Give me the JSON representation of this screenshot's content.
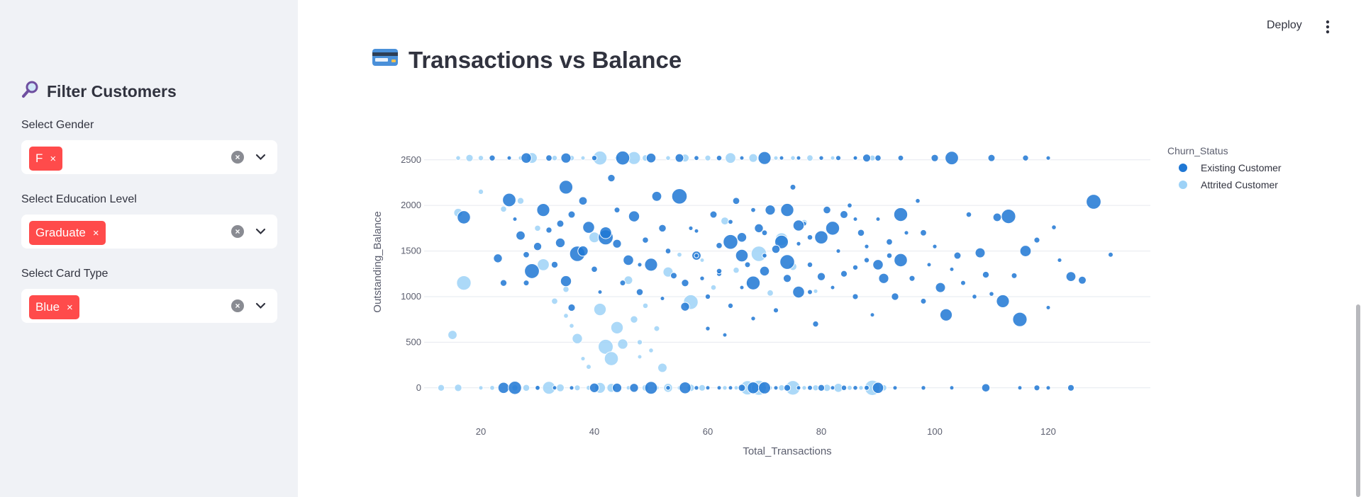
{
  "header": {
    "deploy_label": "Deploy"
  },
  "sidebar": {
    "title": "Filter Customers",
    "title_icon": "magnifier-icon",
    "filters": [
      {
        "label": "Select Gender",
        "selected": "F"
      },
      {
        "label": "Select Education Level",
        "selected": "Graduate"
      },
      {
        "label": "Select Card Type",
        "selected": "Blue"
      }
    ],
    "tag_remove": "×"
  },
  "page": {
    "title": "Transactions vs Balance",
    "title_icon": "credit-card-icon"
  },
  "colors": {
    "accent": "#ff4b4b",
    "existing": "#1f77d4",
    "attrited": "#9dd2f7",
    "sidebar_bg": "#f0f2f6"
  },
  "chart_data": {
    "type": "scatter",
    "xlabel": "Total_Transactions",
    "ylabel": "Outstanding_Balance",
    "xlim": [
      10,
      138
    ],
    "ylim": [
      -250,
      2700
    ],
    "xticks": [
      20,
      40,
      60,
      80,
      100,
      120
    ],
    "yticks": [
      0,
      500,
      1000,
      1500,
      2000,
      2500
    ],
    "grid": true,
    "legend": {
      "title": "Churn_Status",
      "placement": "top-right"
    },
    "series": [
      {
        "name": "Existing Customer",
        "color": "#1f77d4",
        "points": [
          [
            24,
            0
          ],
          [
            26,
            0
          ],
          [
            30,
            0
          ],
          [
            33,
            0
          ],
          [
            36,
            0
          ],
          [
            40,
            0
          ],
          [
            44,
            0
          ],
          [
            47,
            0
          ],
          [
            50,
            0
          ],
          [
            53,
            0
          ],
          [
            56,
            0
          ],
          [
            58,
            0
          ],
          [
            60,
            0
          ],
          [
            62,
            0
          ],
          [
            64,
            0
          ],
          [
            66,
            0
          ],
          [
            68,
            0
          ],
          [
            70,
            0
          ],
          [
            72,
            0
          ],
          [
            74,
            0
          ],
          [
            76,
            0
          ],
          [
            78,
            0
          ],
          [
            80,
            0
          ],
          [
            82,
            0
          ],
          [
            84,
            0
          ],
          [
            86,
            0
          ],
          [
            88,
            0
          ],
          [
            90,
            0
          ],
          [
            93,
            0
          ],
          [
            98,
            0
          ],
          [
            103,
            0
          ],
          [
            109,
            0
          ],
          [
            115,
            0
          ],
          [
            118,
            0
          ],
          [
            120,
            0
          ],
          [
            124,
            0
          ],
          [
            22,
            2520
          ],
          [
            25,
            2520
          ],
          [
            28,
            2520
          ],
          [
            32,
            2520
          ],
          [
            35,
            2520
          ],
          [
            40,
            2520
          ],
          [
            45,
            2520
          ],
          [
            50,
            2520
          ],
          [
            55,
            2520
          ],
          [
            58,
            2520
          ],
          [
            62,
            2520
          ],
          [
            66,
            2520
          ],
          [
            70,
            2520
          ],
          [
            73,
            2520
          ],
          [
            76,
            2520
          ],
          [
            80,
            2520
          ],
          [
            83,
            2520
          ],
          [
            86,
            2520
          ],
          [
            88,
            2520
          ],
          [
            90,
            2520
          ],
          [
            94,
            2520
          ],
          [
            100,
            2520
          ],
          [
            103,
            2520
          ],
          [
            110,
            2520
          ],
          [
            116,
            2520
          ],
          [
            120,
            2520
          ],
          [
            17,
            1870
          ],
          [
            23,
            1420
          ],
          [
            24,
            1150
          ],
          [
            25,
            2060
          ],
          [
            27,
            1670
          ],
          [
            28,
            1460
          ],
          [
            29,
            1280
          ],
          [
            31,
            1950
          ],
          [
            32,
            1730
          ],
          [
            33,
            1350
          ],
          [
            34,
            1590
          ],
          [
            35,
            1170
          ],
          [
            35,
            2200
          ],
          [
            36,
            880
          ],
          [
            37,
            1470
          ],
          [
            38,
            2050
          ],
          [
            39,
            1760
          ],
          [
            40,
            1300
          ],
          [
            41,
            1050
          ],
          [
            42,
            1650
          ],
          [
            43,
            2300
          ],
          [
            44,
            1580
          ],
          [
            45,
            1150
          ],
          [
            46,
            1400
          ],
          [
            47,
            1880
          ],
          [
            48,
            1050
          ],
          [
            49,
            1620
          ],
          [
            50,
            1350
          ],
          [
            51,
            2100
          ],
          [
            52,
            980
          ],
          [
            53,
            1500
          ],
          [
            54,
            1230
          ],
          [
            55,
            2100
          ],
          [
            56,
            890
          ],
          [
            57,
            1750
          ],
          [
            58,
            1450
          ],
          [
            59,
            1200
          ],
          [
            60,
            650
          ],
          [
            61,
            1900
          ],
          [
            62,
            1250
          ],
          [
            63,
            580
          ],
          [
            64,
            1600
          ],
          [
            65,
            2050
          ],
          [
            66,
            1100
          ],
          [
            67,
            1350
          ],
          [
            68,
            760
          ],
          [
            69,
            1750
          ],
          [
            70,
            1450
          ],
          [
            71,
            1950
          ],
          [
            72,
            850
          ],
          [
            73,
            1600
          ],
          [
            74,
            1200
          ],
          [
            75,
            2200
          ],
          [
            76,
            1050
          ],
          [
            77,
            1800
          ],
          [
            78,
            1350
          ],
          [
            79,
            700
          ],
          [
            80,
            1650
          ],
          [
            81,
            1950
          ],
          [
            82,
            1100
          ],
          [
            83,
            1500
          ],
          [
            84,
            1250
          ],
          [
            85,
            2000
          ],
          [
            86,
            1000
          ],
          [
            87,
            1700
          ],
          [
            88,
            1400
          ],
          [
            89,
            800
          ],
          [
            90,
            1850
          ],
          [
            91,
            1200
          ],
          [
            92,
            1600
          ],
          [
            93,
            1000
          ],
          [
            94,
            1400
          ],
          [
            95,
            1700
          ],
          [
            96,
            1200
          ],
          [
            97,
            2050
          ],
          [
            98,
            950
          ],
          [
            99,
            1350
          ],
          [
            100,
            1550
          ],
          [
            101,
            1100
          ],
          [
            102,
            800
          ],
          [
            103,
            1300
          ],
          [
            104,
            1450
          ],
          [
            105,
            1150
          ],
          [
            106,
            1900
          ],
          [
            107,
            1000
          ],
          [
            108,
            1480
          ],
          [
            109,
            1240
          ],
          [
            110,
            1030
          ],
          [
            111,
            1870
          ],
          [
            112,
            950
          ],
          [
            113,
            1880
          ],
          [
            114,
            1230
          ],
          [
            115,
            750
          ],
          [
            116,
            1500
          ],
          [
            118,
            1620
          ],
          [
            120,
            880
          ],
          [
            121,
            1760
          ],
          [
            122,
            1400
          ],
          [
            124,
            1220
          ],
          [
            126,
            1180
          ],
          [
            128,
            2040
          ],
          [
            131,
            1460
          ],
          [
            62,
            1280
          ],
          [
            64,
            900
          ],
          [
            58,
            1450
          ],
          [
            68,
            1150
          ],
          [
            72,
            1520
          ],
          [
            76,
            1780
          ],
          [
            66,
            1650
          ],
          [
            78,
            1050
          ],
          [
            84,
            1900
          ],
          [
            88,
            1550
          ],
          [
            70,
            1280
          ],
          [
            74,
            1380
          ],
          [
            80,
            1220
          ],
          [
            86,
            1320
          ],
          [
            60,
            1000
          ],
          [
            56,
            1150
          ],
          [
            52,
            1750
          ],
          [
            48,
            1350
          ],
          [
            44,
            1950
          ],
          [
            42,
            1700
          ],
          [
            38,
            1500
          ],
          [
            36,
            1900
          ],
          [
            34,
            1800
          ],
          [
            30,
            1550
          ],
          [
            28,
            1150
          ],
          [
            26,
            1850
          ],
          [
            76,
            1580
          ],
          [
            70,
            1700
          ],
          [
            82,
            1750
          ],
          [
            90,
            1350
          ],
          [
            94,
            1900
          ],
          [
            98,
            1700
          ],
          [
            66,
            1450
          ],
          [
            62,
            1560
          ],
          [
            58,
            1720
          ],
          [
            74,
            1950
          ],
          [
            78,
            1650
          ],
          [
            64,
            1820
          ],
          [
            68,
            1950
          ],
          [
            86,
            1850
          ],
          [
            92,
            1450
          ]
        ]
      },
      {
        "name": "Attrited Customer",
        "color": "#9dd2f7",
        "points": [
          [
            13,
            0
          ],
          [
            16,
            0
          ],
          [
            20,
            0
          ],
          [
            22,
            0
          ],
          [
            26,
            0
          ],
          [
            28,
            0
          ],
          [
            30,
            0
          ],
          [
            32,
            0
          ],
          [
            34,
            0
          ],
          [
            37,
            0
          ],
          [
            39,
            0
          ],
          [
            41,
            0
          ],
          [
            43,
            0
          ],
          [
            46,
            0
          ],
          [
            49,
            0
          ],
          [
            51,
            0
          ],
          [
            53,
            0
          ],
          [
            55,
            0
          ],
          [
            57,
            0
          ],
          [
            59,
            0
          ],
          [
            63,
            0
          ],
          [
            65,
            0
          ],
          [
            67,
            0
          ],
          [
            69,
            0
          ],
          [
            71,
            0
          ],
          [
            73,
            0
          ],
          [
            75,
            0
          ],
          [
            77,
            0
          ],
          [
            79,
            0
          ],
          [
            81,
            0
          ],
          [
            83,
            0
          ],
          [
            85,
            0
          ],
          [
            87,
            0
          ],
          [
            89,
            0
          ],
          [
            91,
            0
          ],
          [
            16,
            2520
          ],
          [
            18,
            2520
          ],
          [
            20,
            2520
          ],
          [
            27,
            2520
          ],
          [
            29,
            2520
          ],
          [
            33,
            2520
          ],
          [
            36,
            2520
          ],
          [
            38,
            2520
          ],
          [
            41,
            2520
          ],
          [
            44,
            2520
          ],
          [
            47,
            2520
          ],
          [
            49,
            2520
          ],
          [
            53,
            2520
          ],
          [
            56,
            2520
          ],
          [
            60,
            2520
          ],
          [
            64,
            2520
          ],
          [
            68,
            2520
          ],
          [
            72,
            2520
          ],
          [
            75,
            2520
          ],
          [
            78,
            2520
          ],
          [
            82,
            2520
          ],
          [
            86,
            2520
          ],
          [
            89,
            2520
          ],
          [
            15,
            580
          ],
          [
            16,
            1920
          ],
          [
            17,
            1150
          ],
          [
            20,
            2150
          ],
          [
            24,
            1960
          ],
          [
            27,
            2050
          ],
          [
            30,
            1750
          ],
          [
            31,
            1350
          ],
          [
            33,
            950
          ],
          [
            35,
            1080
          ],
          [
            35,
            790
          ],
          [
            36,
            680
          ],
          [
            37,
            540
          ],
          [
            38,
            320
          ],
          [
            39,
            230
          ],
          [
            40,
            1650
          ],
          [
            41,
            860
          ],
          [
            42,
            450
          ],
          [
            43,
            320
          ],
          [
            44,
            660
          ],
          [
            45,
            480
          ],
          [
            46,
            1180
          ],
          [
            47,
            750
          ],
          [
            48,
            340
          ],
          [
            48,
            500
          ],
          [
            49,
            900
          ],
          [
            50,
            410
          ],
          [
            51,
            650
          ],
          [
            52,
            220
          ],
          [
            53,
            1270
          ],
          [
            55,
            1460
          ],
          [
            57,
            940
          ],
          [
            59,
            1400
          ],
          [
            61,
            1100
          ],
          [
            63,
            1830
          ],
          [
            65,
            1290
          ],
          [
            67,
            1140
          ],
          [
            69,
            1470
          ],
          [
            71,
            1040
          ],
          [
            73,
            1630
          ],
          [
            75,
            1330
          ],
          [
            77,
            1810
          ],
          [
            79,
            1060
          ]
        ]
      }
    ]
  }
}
